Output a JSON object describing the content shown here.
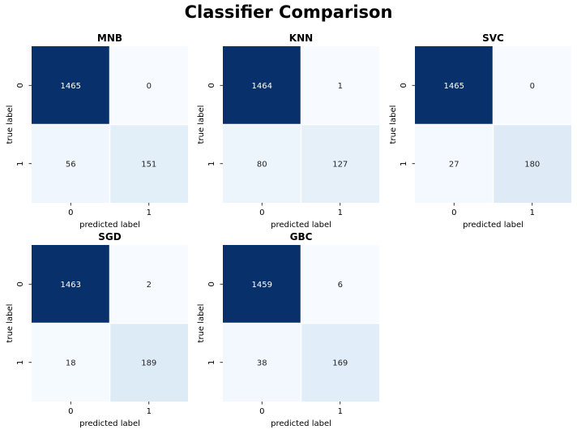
{
  "chart_data": {
    "title": "Classifier Comparison",
    "type": "heatmap",
    "colormap": "Blues",
    "xlabel": "predicted label",
    "ylabel": "true label",
    "x_tick_labels": [
      "0",
      "1"
    ],
    "y_tick_labels": [
      "0",
      "1"
    ],
    "colorbar": false,
    "panels": [
      {
        "title": "MNB",
        "matrix": [
          [
            1465,
            0
          ],
          [
            56,
            151
          ]
        ]
      },
      {
        "title": "KNN",
        "matrix": [
          [
            1464,
            1
          ],
          [
            80,
            127
          ]
        ]
      },
      {
        "title": "SVC",
        "matrix": [
          [
            1465,
            0
          ],
          [
            27,
            180
          ]
        ]
      },
      {
        "title": "SGD",
        "matrix": [
          [
            1463,
            2
          ],
          [
            18,
            189
          ]
        ]
      },
      {
        "title": "GBC",
        "matrix": [
          [
            1459,
            6
          ],
          [
            38,
            169
          ]
        ]
      }
    ]
  }
}
